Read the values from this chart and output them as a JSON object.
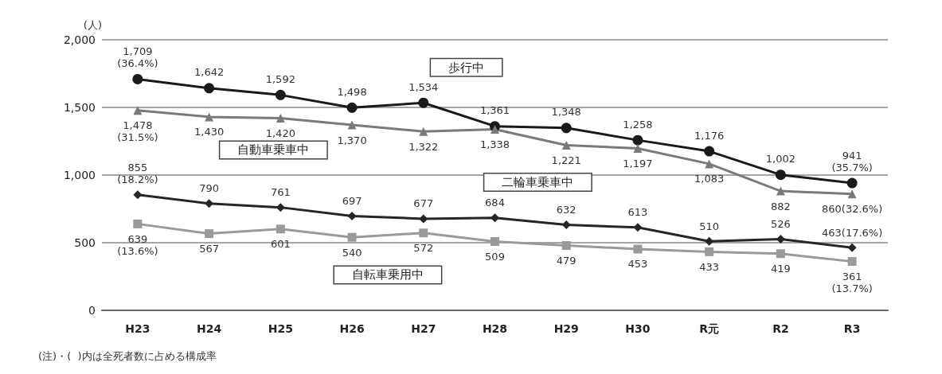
{
  "chart_data": {
    "type": "line",
    "ylabel": "(人)",
    "categories": [
      "H23",
      "H24",
      "H25",
      "H26",
      "H27",
      "H28",
      "H29",
      "H30",
      "R元",
      "R2",
      "R3"
    ],
    "series": [
      {
        "name": "歩行中",
        "color": "#1a1a1a",
        "marker": "circle",
        "values": [
          1709,
          1642,
          1592,
          1498,
          1534,
          1361,
          1348,
          1258,
          1176,
          1002,
          941
        ],
        "value_labels": [
          "1,709\n(36.4%)",
          "1,642",
          "1,592",
          "1,498",
          "1,534",
          "1,361",
          "1,348",
          "1,258",
          "1,176",
          "1,002",
          "941\n(35.7%)"
        ]
      },
      {
        "name": "自動車乗車中",
        "color": "#7a7a7a",
        "marker": "triangle",
        "values": [
          1478,
          1430,
          1420,
          1370,
          1322,
          1338,
          1221,
          1197,
          1083,
          882,
          860
        ],
        "value_labels": [
          "1,478\n(31.5%)",
          "1,430",
          "1,420",
          "1,370",
          "1,322",
          "1,338",
          "1,221",
          "1,197",
          "1,083",
          "882",
          "860(32.6%)"
        ]
      },
      {
        "name": "二輪車乗車中",
        "color": "#262626",
        "marker": "diamond",
        "values": [
          855,
          790,
          761,
          697,
          677,
          684,
          632,
          613,
          510,
          526,
          463
        ],
        "value_labels": [
          "855\n(18.2%)",
          "790",
          "761",
          "697",
          "677",
          "684",
          "632",
          "613",
          "510",
          "526",
          "463(17.6%)"
        ]
      },
      {
        "name": "自転車乗用中",
        "color": "#9a9a9a",
        "marker": "square",
        "values": [
          639,
          567,
          601,
          540,
          572,
          509,
          479,
          453,
          433,
          419,
          361
        ],
        "value_labels": [
          "639\n(13.6%)",
          "567",
          "601",
          "540",
          "572",
          "509",
          "479",
          "453",
          "433",
          "419",
          "361\n(13.7%)"
        ]
      }
    ],
    "ylim": [
      0,
      2000
    ],
    "yticks": [
      0,
      500,
      {
        "value": 1000,
        "label": "1,000"
      },
      {
        "value": 1500,
        "label": "1,500"
      },
      {
        "value": 2000,
        "label": "2,000"
      }
    ],
    "grid": "y",
    "legend": false,
    "annotations": [
      "(注)・(  )内は全死者数に占める構成率"
    ]
  }
}
